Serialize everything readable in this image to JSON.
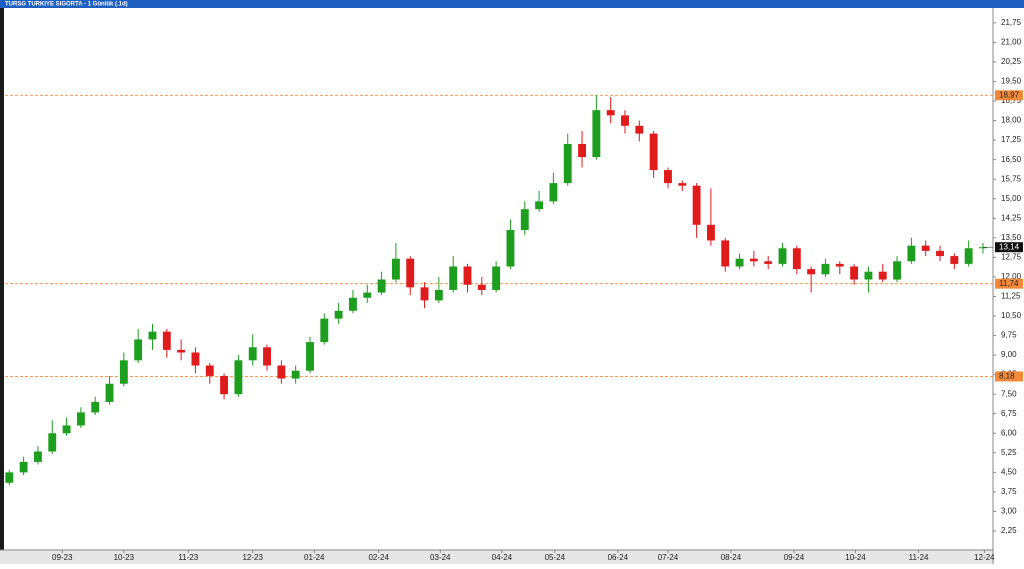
{
  "chart_data": {
    "type": "candlestick",
    "title": "TURSG TURKIYE SIGORTA - 1 Günlük (.1d)",
    "x": [
      0,
      1,
      2,
      3,
      4,
      5,
      6,
      7,
      8,
      9,
      10,
      11,
      12,
      13,
      14,
      15,
      16,
      17,
      18,
      19,
      20,
      21,
      22,
      23,
      24,
      25,
      26,
      27,
      28,
      29,
      30,
      31,
      32,
      33,
      34,
      35,
      36,
      37,
      38,
      39,
      40,
      41,
      42,
      43,
      44,
      45,
      46,
      47,
      48,
      49,
      50,
      51,
      52,
      53,
      54,
      55,
      56,
      57,
      58,
      59,
      60,
      61,
      62,
      63,
      64,
      65,
      66,
      67,
      68
    ],
    "open": [
      4.1,
      4.5,
      4.9,
      5.3,
      6.0,
      6.3,
      6.8,
      7.2,
      7.9,
      8.8,
      9.6,
      9.9,
      9.2,
      9.1,
      8.6,
      8.2,
      7.5,
      8.8,
      9.3,
      8.6,
      8.1,
      8.4,
      9.5,
      10.4,
      10.7,
      11.2,
      11.4,
      11.9,
      12.7,
      11.6,
      11.1,
      11.5,
      12.4,
      11.7,
      11.5,
      12.4,
      13.8,
      14.6,
      14.9,
      15.6,
      17.1,
      16.6,
      18.4,
      18.2,
      17.8,
      17.5,
      16.1,
      15.6,
      15.5,
      14.0,
      13.4,
      12.4,
      12.7,
      12.6,
      12.5,
      13.1,
      12.3,
      12.1,
      12.5,
      12.4,
      11.9,
      12.2,
      11.9,
      12.6,
      13.2,
      13.0,
      12.8,
      12.5,
      13.1
    ],
    "high": [
      4.6,
      5.1,
      5.5,
      6.5,
      6.6,
      7.0,
      7.4,
      8.2,
      9.1,
      10.0,
      10.2,
      10.0,
      9.6,
      9.3,
      8.7,
      8.3,
      9.0,
      9.8,
      9.4,
      8.8,
      8.6,
      9.7,
      10.6,
      11.0,
      11.5,
      11.7,
      12.2,
      13.3,
      12.8,
      11.8,
      12.0,
      12.8,
      12.5,
      12.0,
      12.6,
      14.2,
      14.9,
      15.3,
      16.0,
      17.5,
      17.6,
      18.97,
      18.9,
      18.4,
      18.0,
      17.6,
      16.2,
      15.7,
      15.6,
      15.4,
      13.5,
      12.9,
      13.0,
      12.8,
      13.3,
      13.2,
      12.4,
      12.7,
      12.6,
      12.5,
      12.4,
      12.5,
      12.8,
      13.5,
      13.4,
      13.2,
      12.9,
      13.4,
      13.3
    ],
    "low": [
      4.0,
      4.4,
      4.8,
      5.2,
      5.9,
      6.2,
      6.7,
      7.1,
      7.8,
      8.7,
      9.2,
      8.9,
      8.8,
      8.3,
      7.9,
      7.3,
      7.4,
      8.6,
      8.4,
      7.9,
      7.9,
      8.3,
      9.4,
      10.2,
      10.6,
      11.0,
      11.3,
      11.8,
      11.3,
      10.8,
      11.0,
      11.4,
      11.4,
      11.3,
      11.4,
      12.3,
      13.6,
      14.5,
      14.8,
      15.5,
      16.2,
      16.5,
      17.9,
      17.5,
      17.2,
      15.8,
      15.4,
      15.3,
      13.5,
      13.2,
      12.2,
      12.3,
      12.4,
      12.3,
      12.4,
      12.1,
      11.4,
      12.0,
      12.1,
      11.7,
      11.4,
      11.8,
      11.8,
      12.5,
      12.8,
      12.6,
      12.3,
      12.4,
      12.9
    ],
    "close": [
      4.5,
      4.9,
      5.3,
      6.0,
      6.3,
      6.8,
      7.2,
      7.9,
      8.8,
      9.6,
      9.9,
      9.2,
      9.1,
      8.6,
      8.2,
      7.5,
      8.8,
      9.3,
      8.6,
      8.1,
      8.4,
      9.5,
      10.4,
      10.7,
      11.2,
      11.4,
      11.9,
      12.7,
      11.6,
      11.1,
      11.5,
      12.4,
      11.7,
      11.5,
      12.4,
      13.8,
      14.6,
      14.9,
      15.6,
      17.1,
      16.6,
      18.4,
      18.2,
      17.8,
      17.5,
      16.1,
      15.6,
      15.5,
      14.0,
      13.4,
      12.4,
      12.7,
      12.6,
      12.5,
      13.1,
      12.3,
      12.1,
      12.5,
      12.4,
      11.9,
      12.2,
      11.9,
      12.6,
      13.2,
      13.0,
      12.8,
      12.5,
      13.1,
      13.14
    ],
    "up_color": "#1e9e1e",
    "down_color": "#e01b1b",
    "xlim": [
      -0.3,
      68.7
    ],
    "xticks": [
      {
        "value": 3.7,
        "label": "09-23"
      },
      {
        "value": 8.0,
        "label": "10-23"
      },
      {
        "value": 12.5,
        "label": "11-23"
      },
      {
        "value": 17.0,
        "label": "12-23"
      },
      {
        "value": 21.3,
        "label": "01-24"
      },
      {
        "value": 25.8,
        "label": "02-24"
      },
      {
        "value": 30.1,
        "label": "03-24"
      },
      {
        "value": 34.4,
        "label": "04-24"
      },
      {
        "value": 38.1,
        "label": "05-24"
      },
      {
        "value": 42.5,
        "label": "06-24"
      },
      {
        "value": 46.0,
        "label": "07-24"
      },
      {
        "value": 50.4,
        "label": "08-24"
      },
      {
        "value": 54.8,
        "label": "09-24"
      },
      {
        "value": 59.1,
        "label": "10-24"
      },
      {
        "value": 63.5,
        "label": "11-24"
      },
      {
        "value": 68.1,
        "label": "12-24"
      }
    ],
    "ylim": [
      1.52,
      22.32
    ],
    "yticks": [
      {
        "value": 2.25,
        "label": "2,25"
      },
      {
        "value": 3.0,
        "label": "3,00"
      },
      {
        "value": 3.75,
        "label": "3,75"
      },
      {
        "value": 4.5,
        "label": "4,50"
      },
      {
        "value": 5.25,
        "label": "5,25"
      },
      {
        "value": 6.0,
        "label": "6,00"
      },
      {
        "value": 6.75,
        "label": "6,75"
      },
      {
        "value": 7.5,
        "label": "7,50"
      },
      {
        "value": 8.25,
        "label": "8,25"
      },
      {
        "value": 9.0,
        "label": "9,00"
      },
      {
        "value": 9.75,
        "label": "9,75"
      },
      {
        "value": 10.5,
        "label": "10,50"
      },
      {
        "value": 11.25,
        "label": "11,25"
      },
      {
        "value": 12.0,
        "label": "12,00"
      },
      {
        "value": 12.75,
        "label": "12,75"
      },
      {
        "value": 13.5,
        "label": "13,50"
      },
      {
        "value": 14.25,
        "label": "14,25"
      },
      {
        "value": 15.0,
        "label": "15,00"
      },
      {
        "value": 15.75,
        "label": "15,75"
      },
      {
        "value": 16.5,
        "label": "16,50"
      },
      {
        "value": 17.25,
        "label": "17,25"
      },
      {
        "value": 18.0,
        "label": "18,00"
      },
      {
        "value": 18.75,
        "label": "18,75"
      },
      {
        "value": 19.5,
        "label": "19,50"
      },
      {
        "value": 20.25,
        "label": "20,25"
      },
      {
        "value": 21.0,
        "label": "21,00"
      },
      {
        "value": 21.75,
        "label": "21,75"
      }
    ],
    "hlines": [
      {
        "value": 18.97,
        "label": "18,97"
      },
      {
        "value": 11.74,
        "label": "11,74"
      },
      {
        "value": 8.18,
        "label": "8,18"
      }
    ],
    "hline_color": "#f5893a",
    "last_price": {
      "value": 13.14,
      "label": "13,14"
    }
  }
}
